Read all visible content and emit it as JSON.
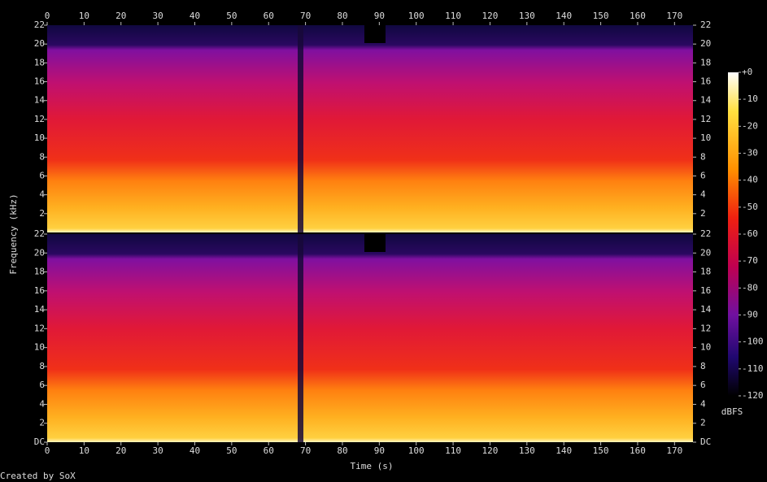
{
  "chart_data": {
    "type": "spectrogram",
    "xlabel": "Time (s)",
    "ylabel": "Frequency (kHz)",
    "xlim": [
      0,
      175
    ],
    "xticks": [
      0,
      10,
      20,
      30,
      40,
      50,
      60,
      70,
      80,
      90,
      100,
      110,
      120,
      130,
      140,
      150,
      160,
      170
    ],
    "ylim": [
      0,
      22
    ],
    "channels": [
      {
        "yticks": [
          2,
          4,
          6,
          8,
          10,
          12,
          14,
          16,
          18,
          20,
          22
        ]
      },
      {
        "yticks": [
          {
            "value": 0,
            "label": "DC"
          },
          2,
          4,
          6,
          8,
          10,
          12,
          14,
          16,
          18,
          20,
          22
        ]
      }
    ],
    "colorbar": {
      "label": "dBFS",
      "lim": [
        -120,
        0
      ],
      "ticks": [
        {
          "value": 0,
          "label": "+0"
        },
        -10,
        -20,
        -30,
        -40,
        -50,
        -60,
        -70,
        -80,
        -90,
        -100,
        -110,
        -120
      ]
    },
    "footer": "Created by SoX"
  }
}
